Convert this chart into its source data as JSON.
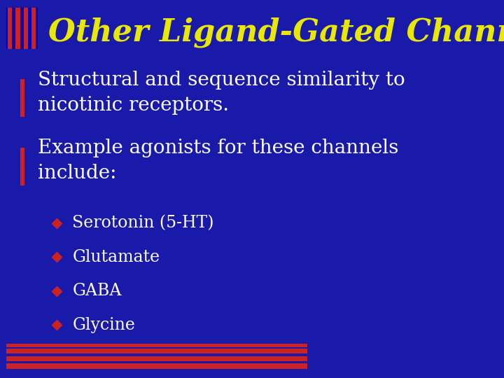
{
  "bg_color": "#1a1aaa",
  "title": "Other Ligand-Gated Channels",
  "title_color": "#e8e800",
  "title_fontsize": 32,
  "title_italic": true,
  "bullet_color": "#cc2222",
  "bullet_text_color": "#ffffff",
  "bullet_fontsize": 20,
  "bullets": [
    "Structural and sequence similarity to\nnicotinic receptors.",
    "Example agonists for these channels\ninclude:"
  ],
  "sub_bullets": [
    "Serotonin (5-HT)",
    "Glutamate",
    "GABA",
    "Glycine"
  ],
  "sub_bullet_color": "#cc2222",
  "sub_bullet_fontsize": 17,
  "bottom_stripe_color": "#cc2222",
  "top_deco_color_red": "#cc2222",
  "top_deco_color_blue": "#0000cc"
}
